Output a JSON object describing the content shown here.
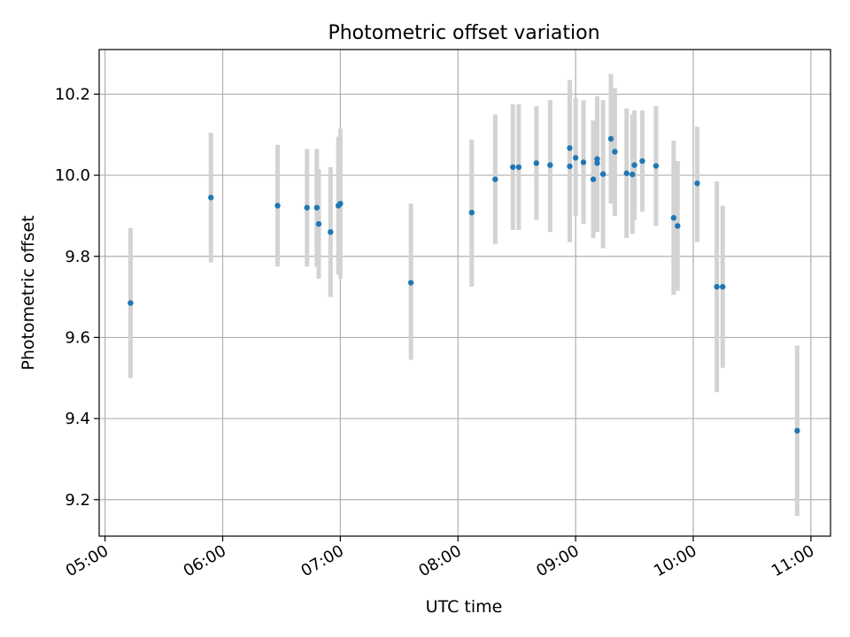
{
  "chart_data": {
    "type": "scatter",
    "title": "Photometric offset variation",
    "xlabel": "UTC time",
    "ylabel": "Photometric offset",
    "x_unit": "UTC hh:mm",
    "xlim": [
      "04:57",
      "11:10"
    ],
    "ylim": [
      9.11,
      10.31
    ],
    "x_ticks": [
      "05:00",
      "06:00",
      "07:00",
      "08:00",
      "09:00",
      "10:00",
      "11:00"
    ],
    "y_ticks": [
      9.2,
      9.4,
      9.6,
      9.8,
      10.0,
      10.2
    ],
    "y_tick_labels": [
      "9.2",
      "9.4",
      "9.6",
      "9.8",
      "10.0",
      "10.2"
    ],
    "grid": true,
    "legend": "none",
    "colors": {
      "points": "#1f77b4",
      "errorbars": "#d3d3d3",
      "grid": "#b0b0b0"
    },
    "series": [
      {
        "points": [
          {
            "x": "05:13",
            "y": 9.685,
            "ylo": 9.5,
            "yhi": 9.87
          },
          {
            "x": "05:54",
            "y": 9.945,
            "ylo": 9.785,
            "yhi": 10.105
          },
          {
            "x": "06:28",
            "y": 9.925,
            "ylo": 9.775,
            "yhi": 10.075
          },
          {
            "x": "06:43",
            "y": 9.92,
            "ylo": 9.775,
            "yhi": 10.065
          },
          {
            "x": "06:48",
            "y": 9.92,
            "ylo": 9.775,
            "yhi": 10.065
          },
          {
            "x": "06:49",
            "y": 9.88,
            "ylo": 9.745,
            "yhi": 10.015
          },
          {
            "x": "06:55",
            "y": 9.86,
            "ylo": 9.7,
            "yhi": 10.02
          },
          {
            "x": "06:59",
            "y": 9.925,
            "ylo": 9.755,
            "yhi": 10.095
          },
          {
            "x": "07:00",
            "y": 9.93,
            "ylo": 9.745,
            "yhi": 10.115
          },
          {
            "x": "07:36",
            "y": 9.735,
            "ylo": 9.545,
            "yhi": 9.93
          },
          {
            "x": "08:07",
            "y": 9.908,
            "ylo": 9.725,
            "yhi": 10.088
          },
          {
            "x": "08:19",
            "y": 9.99,
            "ylo": 9.83,
            "yhi": 10.15
          },
          {
            "x": "08:28",
            "y": 10.02,
            "ylo": 9.865,
            "yhi": 10.175
          },
          {
            "x": "08:31",
            "y": 10.02,
            "ylo": 9.865,
            "yhi": 10.175
          },
          {
            "x": "08:40",
            "y": 10.03,
            "ylo": 9.89,
            "yhi": 10.17
          },
          {
            "x": "08:47",
            "y": 10.025,
            "ylo": 9.86,
            "yhi": 10.185
          },
          {
            "x": "08:57",
            "y": 10.067,
            "ylo": 9.9,
            "yhi": 10.235
          },
          {
            "x": "08:57",
            "y": 10.022,
            "ylo": 9.835,
            "yhi": 10.21
          },
          {
            "x": "09:00",
            "y": 10.043,
            "ylo": 9.9,
            "yhi": 10.19
          },
          {
            "x": "09:04",
            "y": 10.032,
            "ylo": 9.88,
            "yhi": 10.185
          },
          {
            "x": "09:09",
            "y": 9.99,
            "ylo": 9.845,
            "yhi": 10.135
          },
          {
            "x": "09:11",
            "y": 10.03,
            "ylo": 9.86,
            "yhi": 10.195
          },
          {
            "x": "09:11",
            "y": 10.04,
            "ylo": 9.88,
            "yhi": 10.19
          },
          {
            "x": "09:14",
            "y": 10.003,
            "ylo": 9.82,
            "yhi": 10.185
          },
          {
            "x": "09:18",
            "y": 10.09,
            "ylo": 9.93,
            "yhi": 10.25
          },
          {
            "x": "09:20",
            "y": 10.058,
            "ylo": 9.9,
            "yhi": 10.215
          },
          {
            "x": "09:26",
            "y": 10.005,
            "ylo": 9.845,
            "yhi": 10.165
          },
          {
            "x": "09:29",
            "y": 10.002,
            "ylo": 9.855,
            "yhi": 10.15
          },
          {
            "x": "09:30",
            "y": 10.025,
            "ylo": 9.89,
            "yhi": 10.16
          },
          {
            "x": "09:34",
            "y": 10.035,
            "ylo": 9.91,
            "yhi": 10.16
          },
          {
            "x": "09:41",
            "y": 10.023,
            "ylo": 9.875,
            "yhi": 10.17
          },
          {
            "x": "09:50",
            "y": 9.895,
            "ylo": 9.705,
            "yhi": 10.085
          },
          {
            "x": "09:52",
            "y": 9.875,
            "ylo": 9.715,
            "yhi": 10.035
          },
          {
            "x": "10:02",
            "y": 9.98,
            "ylo": 9.835,
            "yhi": 10.12
          },
          {
            "x": "10:12",
            "y": 9.725,
            "ylo": 9.465,
            "yhi": 9.985
          },
          {
            "x": "10:15",
            "y": 9.725,
            "ylo": 9.525,
            "yhi": 9.925
          },
          {
            "x": "10:53",
            "y": 9.37,
            "ylo": 9.16,
            "yhi": 9.58
          }
        ]
      }
    ]
  }
}
